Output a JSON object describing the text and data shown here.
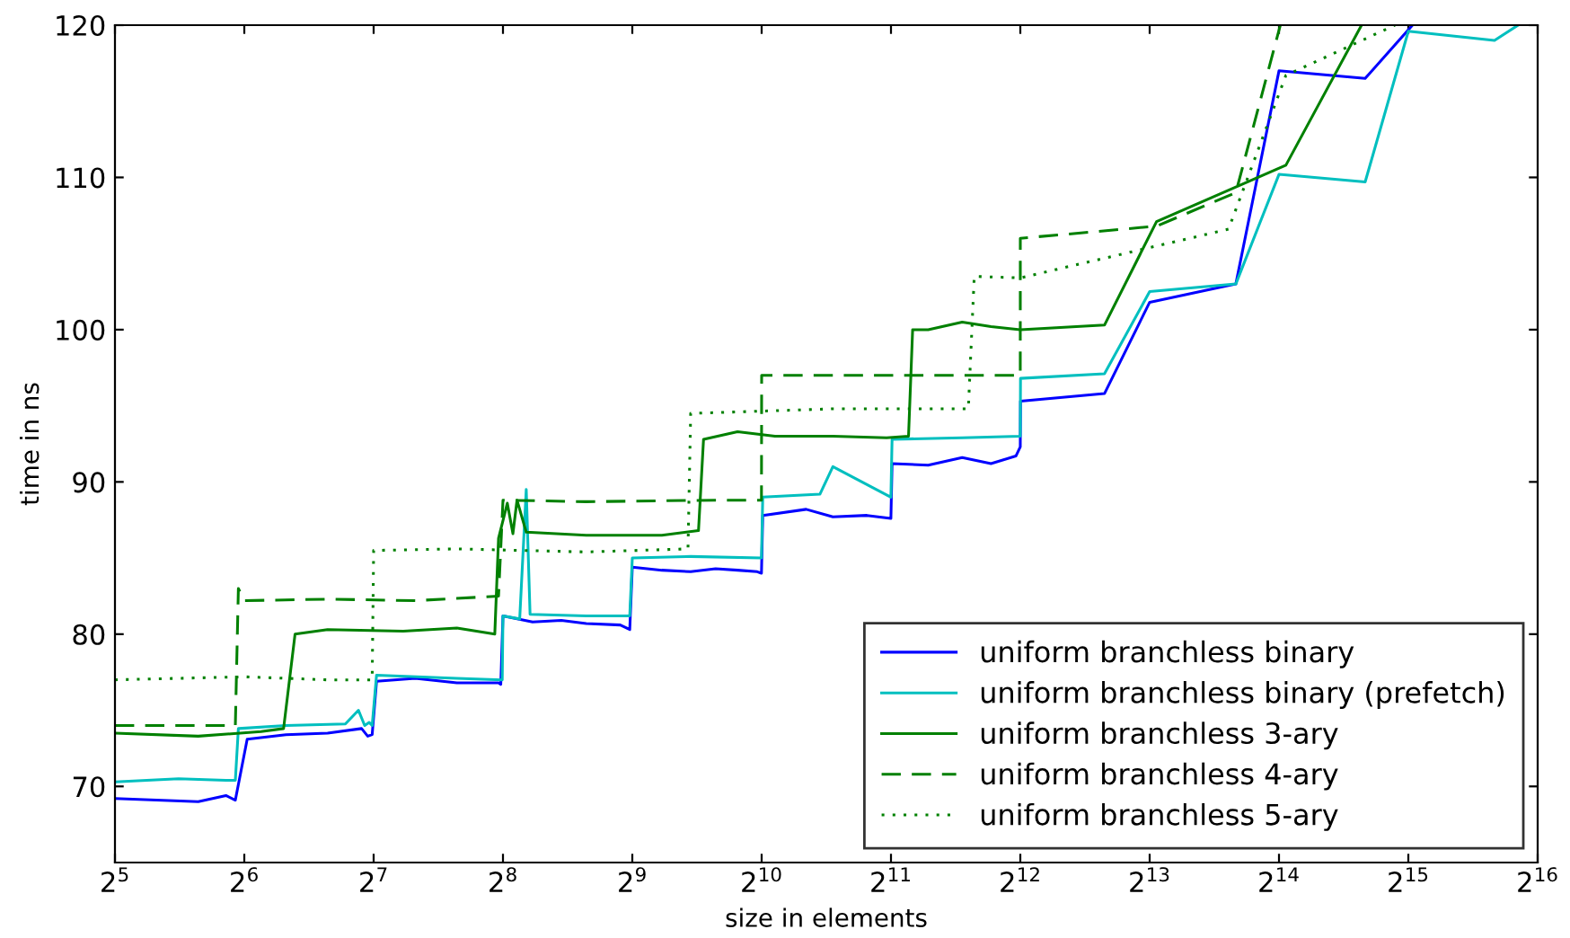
{
  "chart_data": {
    "type": "line",
    "xlabel": "size in elements",
    "ylabel": "time in ns",
    "log": "x",
    "xlim": [
      32,
      65536
    ],
    "ylim": [
      65,
      120
    ],
    "xticks": [
      {
        "value": 32,
        "label": "2$^{5}$"
      },
      {
        "value": 64,
        "label": "2$^{6}$"
      },
      {
        "value": 128,
        "label": "2$^{7}$"
      },
      {
        "value": 256,
        "label": "2$^{8}$"
      },
      {
        "value": 512,
        "label": "2$^{9}$"
      },
      {
        "value": 1024,
        "label": "2$^{10}$"
      },
      {
        "value": 2048,
        "label": "2$^{11}$"
      },
      {
        "value": 4096,
        "label": "2$^{12}$"
      },
      {
        "value": 8192,
        "label": "2$^{13}$"
      },
      {
        "value": 16384,
        "label": "2$^{14}$"
      },
      {
        "value": 32768,
        "label": "2$^{15}$"
      },
      {
        "value": 65536,
        "label": "2$^{16}$"
      }
    ],
    "yticks": [
      70,
      80,
      90,
      100,
      110,
      120
    ],
    "grid": false,
    "legend": "bottom right",
    "marker": "none",
    "series": [
      {
        "name": "uniform branchless binary",
        "color": "#0000ff",
        "line_style": "solid",
        "x": [
          32,
          40,
          50,
          58,
          61,
          65,
          80,
          100,
          120,
          124,
          127,
          130,
          160,
          200,
          250,
          253,
          256,
          300,
          350,
          400,
          480,
          505,
          512,
          600,
          700,
          800,
          900,
          1000,
          1023,
          1030,
          1300,
          1500,
          1800,
          2047,
          2060,
          2500,
          3000,
          3500,
          4000,
          4095,
          4100,
          6430,
          8192,
          13000,
          16384,
          26000,
          33500
        ],
        "values": [
          69.2,
          69.1,
          69.0,
          69.4,
          69.1,
          73.1,
          73.4,
          73.5,
          73.8,
          73.3,
          73.4,
          76.9,
          77.1,
          76.8,
          76.8,
          76.7,
          81.2,
          80.8,
          80.9,
          80.7,
          80.6,
          80.3,
          84.4,
          84.2,
          84.1,
          84.3,
          84.2,
          84.1,
          84.0,
          87.8,
          88.2,
          87.7,
          87.8,
          87.6,
          91.2,
          91.1,
          91.6,
          91.2,
          91.7,
          92.3,
          95.3,
          95.8,
          101.8,
          103.0,
          117.0,
          116.5,
          120
        ]
      },
      {
        "name": "uniform branchless binary (prefetch)",
        "color": "#00bfbf",
        "line_style": "solid",
        "x": [
          32,
          45,
          58,
          61,
          62,
          80,
          110,
          118,
          122,
          125,
          127,
          130,
          200,
          255,
          256,
          280,
          290,
          296,
          400,
          505,
          512,
          700,
          1023,
          1030,
          1400,
          1500,
          2047,
          2060,
          3000,
          4095,
          4100,
          6430,
          8192,
          13000,
          16384,
          26000,
          32768,
          52000,
          59000
        ],
        "values": [
          70.3,
          70.5,
          70.4,
          70.4,
          73.8,
          74.0,
          74.1,
          75.0,
          74.0,
          74.2,
          74.0,
          77.3,
          77.1,
          77.0,
          81.2,
          81.0,
          89.5,
          81.3,
          81.2,
          81.2,
          85.0,
          85.1,
          85.0,
          89.0,
          89.2,
          91.0,
          89.0,
          92.8,
          92.9,
          93.0,
          96.8,
          97.1,
          102.5,
          103.0,
          110.2,
          109.7,
          119.6,
          119.0,
          120
        ]
      },
      {
        "name": "uniform branchless 3-ary",
        "color": "#008000",
        "line_style": "solid",
        "x": [
          32,
          50,
          70,
          79,
          84,
          100,
          150,
          200,
          245,
          250,
          262,
          270,
          276,
          290,
          400,
          600,
          730,
          750,
          900,
          1100,
          1500,
          2000,
          2250,
          2300,
          2500,
          3000,
          3500,
          4095,
          6430,
          8500,
          17000,
          25500
        ],
        "values": [
          73.5,
          73.3,
          73.6,
          73.8,
          80.0,
          80.3,
          80.2,
          80.4,
          80.0,
          86.3,
          88.6,
          86.6,
          88.8,
          86.7,
          86.5,
          86.5,
          86.8,
          92.8,
          93.3,
          93.0,
          93.0,
          92.9,
          93.0,
          100.0,
          100.0,
          100.5,
          100.2,
          100.0,
          100.3,
          107.1,
          110.8,
          120
        ]
      },
      {
        "name": "uniform branchless 4-ary",
        "color": "#008000",
        "line_style": "dashed",
        "x": [
          32,
          61,
          62,
          64,
          100,
          160,
          250,
          256,
          400,
          800,
          1023,
          1024,
          2000,
          4095,
          4096,
          8500,
          13000,
          16500
        ],
        "values": [
          74.0,
          74.0,
          83.0,
          82.2,
          82.3,
          82.2,
          82.5,
          88.8,
          88.7,
          88.8,
          88.8,
          97.0,
          97.0,
          97.0,
          106.0,
          106.8,
          109.0,
          120
        ]
      },
      {
        "name": "uniform branchless 5-ary",
        "color": "#008000",
        "line_style": "dotted",
        "x": [
          32,
          64,
          100,
          127,
          128,
          200,
          400,
          690,
          700,
          1500,
          3100,
          3200,
          4096,
          12500,
          17000,
          30500
        ],
        "values": [
          77.0,
          77.2,
          77.0,
          77.0,
          85.5,
          85.6,
          85.4,
          85.6,
          94.5,
          94.8,
          94.8,
          103.5,
          103.4,
          106.6,
          116.7,
          120
        ]
      }
    ]
  }
}
